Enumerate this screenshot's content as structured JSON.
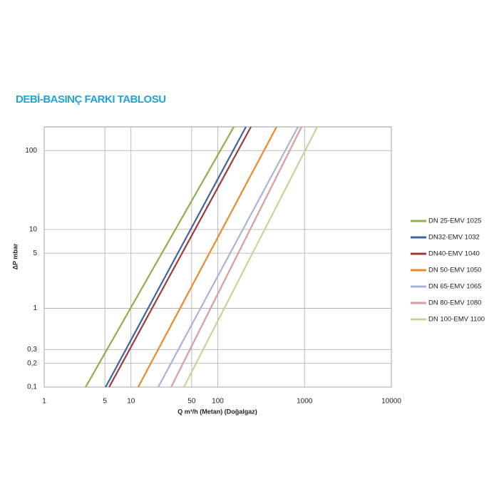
{
  "chart_data": {
    "type": "line",
    "title": "DEBİ-BASINÇ FARKI TABLOSU",
    "x_label": "Q m³/h (Metan) (Doğalgaz)",
    "y_label": "ΔP mbar",
    "xscale": "log",
    "yscale": "log",
    "grid": true,
    "legend": "right",
    "xlim": [
      1,
      10000
    ],
    "ylim": [
      0.1,
      200
    ],
    "xticks": [
      1,
      5,
      10,
      50,
      100,
      1000,
      10000
    ],
    "yticks": [
      {
        "value": 0.1,
        "label": "0,1"
      },
      {
        "value": 0.2,
        "label": "0,2"
      },
      {
        "value": 0.3,
        "label": "0,3"
      },
      1,
      5,
      10,
      100
    ],
    "series": [
      {
        "name": "DN 25-EMV 1025",
        "color": "#8db04a",
        "x": [
          3.0,
          153
        ],
        "values": [
          0.1,
          200
        ]
      },
      {
        "name": "DN32-EMV 1032",
        "color": "#3f62a0",
        "x": [
          5.1,
          211
        ],
        "values": [
          0.1,
          200
        ]
      },
      {
        "name": "DN40-EMV 1040",
        "color": "#a03a38",
        "x": [
          5.6,
          241
        ],
        "values": [
          0.1,
          200
        ]
      },
      {
        "name": "DN 50-EMV 1050",
        "color": "#e98a2b",
        "x": [
          12.1,
          476
        ],
        "values": [
          0.1,
          200
        ]
      },
      {
        "name": "DN 65-EMV 1065",
        "color": "#a5b4d8",
        "x": [
          20.6,
          839
        ],
        "values": [
          0.1,
          200
        ]
      },
      {
        "name": "DN 80-EMV 1080",
        "color": "#d89ba0",
        "x": [
          29,
          923
        ],
        "values": [
          0.1,
          200
        ]
      },
      {
        "name": "DN 100-EMV 1100",
        "color": "#c2d69b",
        "x": [
          40.7,
          1400
        ],
        "values": [
          0.1,
          200
        ]
      }
    ]
  }
}
